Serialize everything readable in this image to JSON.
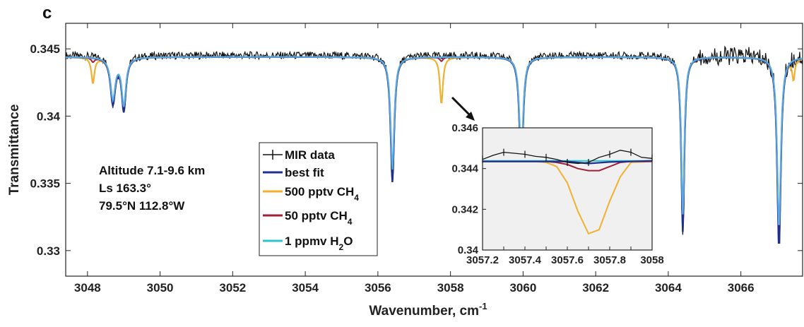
{
  "panel_label": "c",
  "annotation": [
    "Altitude 7.1-9.6 km",
    "Ls 163.3°",
    "79.5°N 112.8°W"
  ],
  "chart_data": [
    {
      "type": "line",
      "xlabel": "Wavenumber, cm",
      "xlabel_sup": "-1",
      "ylabel": "Transmittance",
      "xlim": [
        3047.4,
        3067.7
      ],
      "ylim": [
        0.3281,
        0.3469
      ],
      "xticks": [
        3048,
        3050,
        3052,
        3054,
        3056,
        3058,
        3060,
        3062,
        3064,
        3066
      ],
      "yticks": [
        0.33,
        0.335,
        0.34,
        0.345
      ],
      "ytick_labels": [
        "0.33",
        "0.335",
        "0.34",
        "0.345"
      ],
      "baseline": 0.3444,
      "absorption_lines": [
        {
          "x": 3048.15,
          "depth_500ppt": 0.0019,
          "width": 0.05
        },
        {
          "x": 3048.7,
          "depth_fit": 0.0034,
          "width": 0.08
        },
        {
          "x": 3049.0,
          "depth_fit": 0.0039,
          "width": 0.07
        },
        {
          "x": 3056.4,
          "depth_fit": 0.0093,
          "width": 0.06
        },
        {
          "x": 3057.75,
          "depth_500ppt": 0.0035,
          "width": 0.05
        },
        {
          "x": 3059.95,
          "depth_fit": 0.0086,
          "width": 0.06
        },
        {
          "x": 3064.4,
          "depth_fit": 0.013,
          "width": 0.05
        },
        {
          "x": 3067.05,
          "depth_fit": 0.0142,
          "width": 0.06
        },
        {
          "x": 3067.45,
          "depth_500ppt": 0.0015,
          "width": 0.04
        }
      ],
      "series": [
        {
          "name": "MIR data",
          "color": "#111111"
        },
        {
          "name": "best fit",
          "color": "#1f2f8f"
        },
        {
          "name": "500 pptv CH",
          "sub": "4",
          "color": "#f0b030"
        },
        {
          "name": "50 pptv CH",
          "sub": "4",
          "color": "#a0203a"
        },
        {
          "name": "1 ppmv H",
          "sub": "2",
          "tail": "O",
          "color": "#2ec4c9"
        }
      ]
    },
    {
      "type": "line",
      "xlim": [
        3057.2,
        3058.0
      ],
      "ylim": [
        0.34,
        0.346
      ],
      "xticks": [
        3057.2,
        3057.3,
        3057.4,
        3057.5,
        3057.6,
        3057.7,
        3057.8,
        3057.9,
        3058.0
      ],
      "xtick_labels": [
        "3057.2",
        "",
        "3057.4",
        "",
        "3057.6",
        "",
        "3057.8",
        "",
        "3058"
      ],
      "yticks": [
        0.34,
        0.342,
        0.344,
        0.346
      ],
      "ytick_labels": [
        "0.34",
        "0.342",
        "0.344",
        "0.346"
      ],
      "series": [
        {
          "name": "MIR data",
          "color": "#111111",
          "x": [
            3057.2,
            3057.25,
            3057.3,
            3057.35,
            3057.4,
            3057.45,
            3057.5,
            3057.55,
            3057.6,
            3057.65,
            3057.7,
            3057.75,
            3057.8,
            3057.85,
            3057.9,
            3057.95,
            3058.0
          ],
          "y": [
            0.34445,
            0.34465,
            0.3448,
            0.34475,
            0.3447,
            0.3446,
            0.34455,
            0.34445,
            0.3443,
            0.34425,
            0.3443,
            0.34455,
            0.3447,
            0.3449,
            0.3448,
            0.34455,
            0.3445
          ]
        },
        {
          "name": "best fit",
          "color": "#1f2f8f",
          "x": [
            3057.2,
            3057.6,
            3057.7,
            3057.8,
            3058.0
          ],
          "y": [
            0.34435,
            0.34435,
            0.34425,
            0.34432,
            0.34438
          ]
        },
        {
          "name": "500 pptv CH4",
          "color": "#f0b030",
          "x": [
            3057.2,
            3057.45,
            3057.5,
            3057.55,
            3057.6,
            3057.65,
            3057.7,
            3057.75,
            3057.8,
            3057.85,
            3057.9,
            3058.0
          ],
          "y": [
            0.34435,
            0.34435,
            0.3443,
            0.3441,
            0.3433,
            0.3419,
            0.3408,
            0.341,
            0.3424,
            0.3436,
            0.3443,
            0.34435
          ]
        },
        {
          "name": "50 pptv CH4",
          "color": "#a0203a",
          "x": [
            3057.2,
            3057.5,
            3057.55,
            3057.6,
            3057.65,
            3057.7,
            3057.75,
            3057.8,
            3057.85,
            3057.9,
            3058.0
          ],
          "y": [
            0.34435,
            0.34435,
            0.3443,
            0.3442,
            0.344,
            0.3439,
            0.3439,
            0.3441,
            0.3443,
            0.34435,
            0.34435
          ]
        },
        {
          "name": "1 ppmv H2O",
          "color": "#2ec4c9",
          "x": [
            3057.2,
            3058.0
          ],
          "y": [
            0.34438,
            0.34438
          ]
        }
      ]
    }
  ]
}
